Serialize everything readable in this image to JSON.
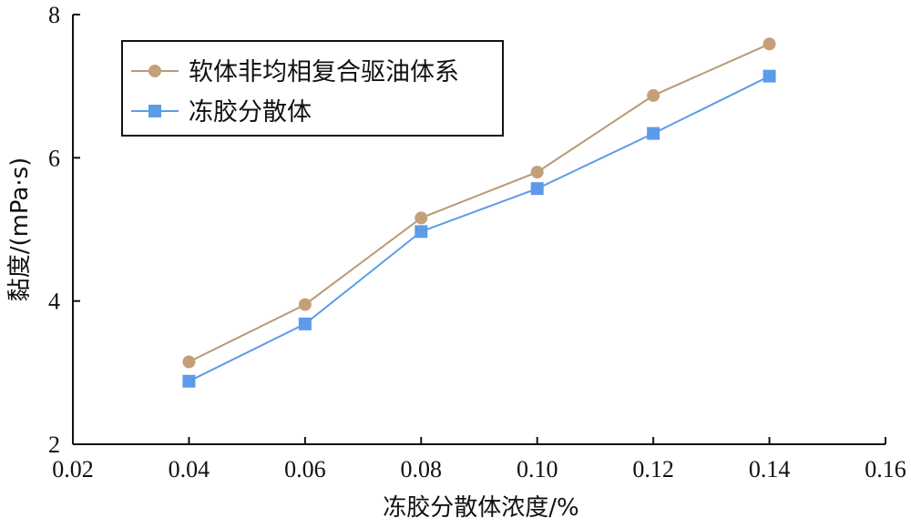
{
  "chart_data": {
    "type": "line",
    "xlabel": "冻胶分散体浓度/%",
    "ylabel": "黏度/(mPa·s)",
    "xlim": [
      0.02,
      0.16
    ],
    "ylim": [
      2,
      8
    ],
    "xticks": [
      "0.02",
      "0.04",
      "0.06",
      "0.08",
      "0.10",
      "0.12",
      "0.14",
      "0.16"
    ],
    "yticks": [
      "2",
      "4",
      "6",
      "8"
    ],
    "x": [
      0.04,
      0.06,
      0.08,
      0.1,
      0.12,
      0.14
    ],
    "series": [
      {
        "name": "软体非均相复合驱油体系",
        "marker": "circle",
        "color": "#c4a079",
        "line_color": "#b99a74",
        "values": [
          3.15,
          3.95,
          5.16,
          5.8,
          6.87,
          7.59
        ]
      },
      {
        "name": "冻胶分散体",
        "marker": "square",
        "color": "#5d9be8",
        "line_color": "#5d9be8",
        "values": [
          2.88,
          3.68,
          4.97,
          5.57,
          6.34,
          7.14
        ]
      }
    ],
    "grid": false,
    "legend": "top-left"
  }
}
